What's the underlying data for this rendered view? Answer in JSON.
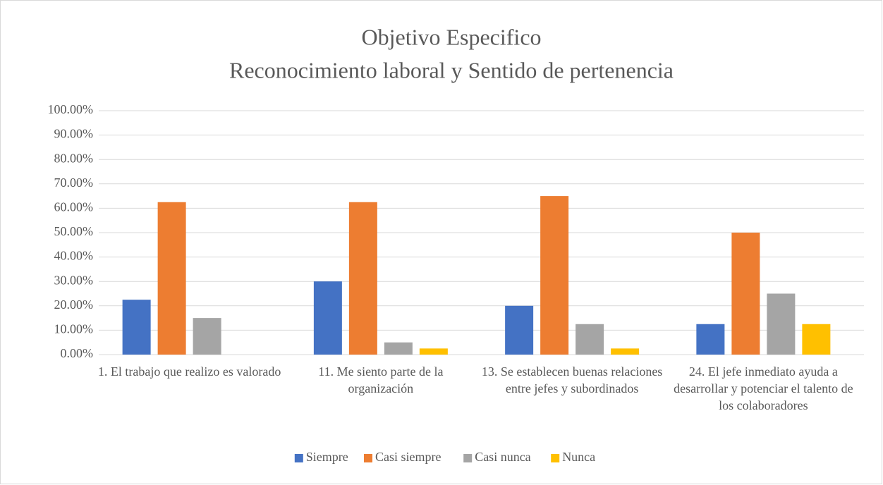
{
  "chart_data": {
    "type": "bar",
    "title": "Objetivo Especifico",
    "subtitle": "Reconocimiento laboral y Sentido de pertenencia",
    "categories": [
      "1. El trabajo que realizo es valorado",
      "11. Me siento parte de la organización",
      "13. Se establecen buenas relaciones entre jefes y subordinados",
      "24. El jefe inmediato ayuda a desarrollar y potenciar el talento de los colaboradores"
    ],
    "series": [
      {
        "name": "Siempre",
        "color": "#4472c4",
        "values": [
          22.5,
          30,
          20,
          12.5
        ]
      },
      {
        "name": "Casi siempre",
        "color": "#ed7d31",
        "values": [
          62.5,
          62.5,
          65,
          50
        ]
      },
      {
        "name": "Casi nunca",
        "color": "#a5a5a5",
        "values": [
          15,
          5,
          12.5,
          25
        ]
      },
      {
        "name": "Nunca",
        "color": "#ffc000",
        "values": [
          0,
          2.5,
          2.5,
          12.5
        ]
      }
    ],
    "ylim": [
      0,
      100
    ],
    "yticks": [
      {
        "value": 0,
        "label": "0.00%"
      },
      {
        "value": 10,
        "label": "10.00%"
      },
      {
        "value": 20,
        "label": "20.00%"
      },
      {
        "value": 30,
        "label": "30.00%"
      },
      {
        "value": 40,
        "label": "40.00%"
      },
      {
        "value": 50,
        "label": "50.00%"
      },
      {
        "value": 60,
        "label": "60.00%"
      },
      {
        "value": 70,
        "label": "70.00%"
      },
      {
        "value": 80,
        "label": "80.00%"
      },
      {
        "value": 90,
        "label": "90.00%"
      },
      {
        "value": 100,
        "label": "100.00%"
      }
    ],
    "grid": true,
    "legend": "bottom"
  }
}
